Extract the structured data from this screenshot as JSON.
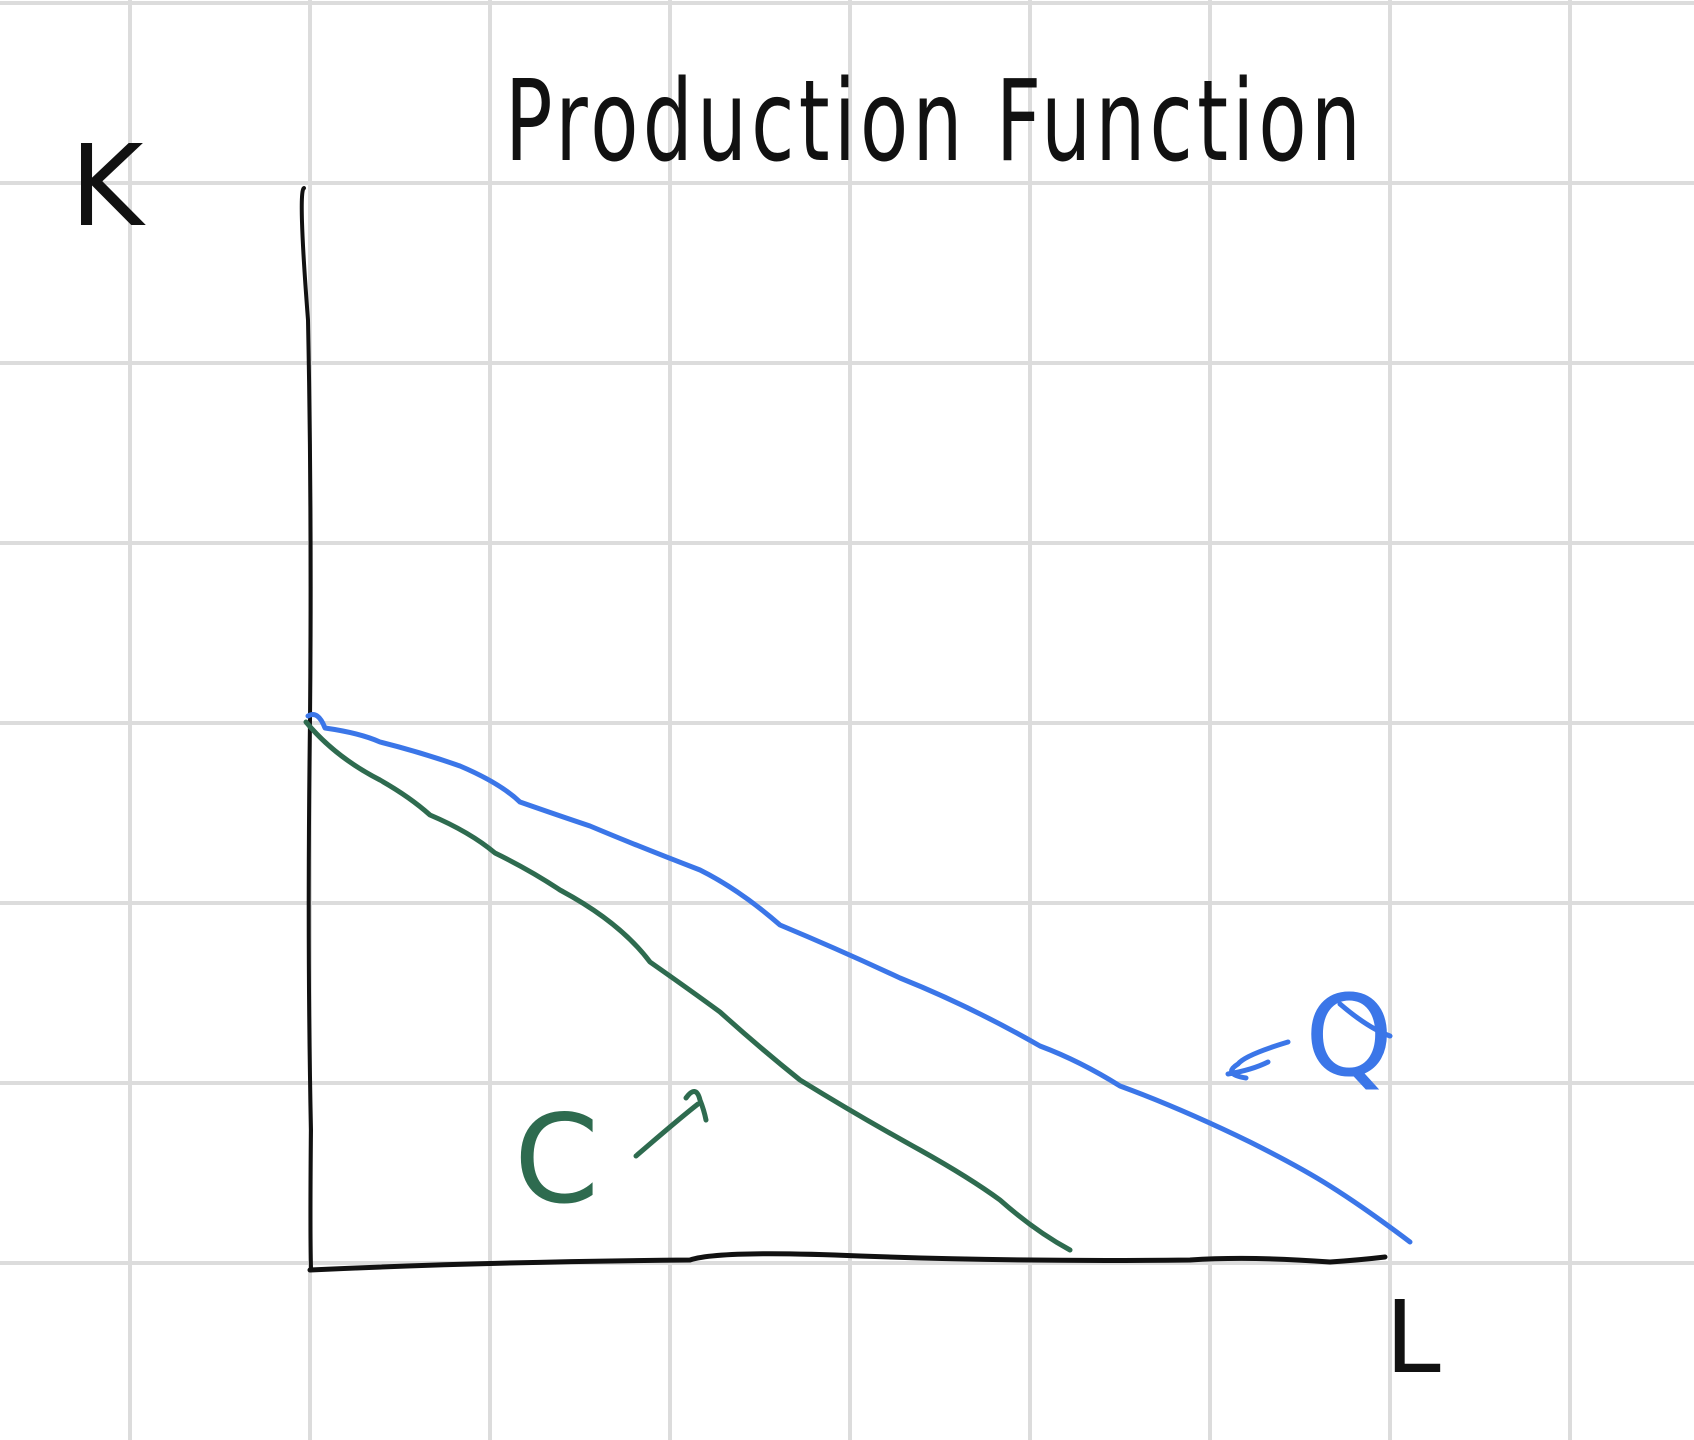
{
  "title": "Production Function",
  "axes": {
    "y_label": "K",
    "x_label": "L"
  },
  "curves": [
    {
      "label": "Q",
      "color": "#3b76e8"
    },
    {
      "label": "C",
      "color": "#2e6b4f"
    }
  ],
  "colors": {
    "ink": "#111111",
    "grid": "#dcdcdc",
    "background": "#ffffff"
  }
}
